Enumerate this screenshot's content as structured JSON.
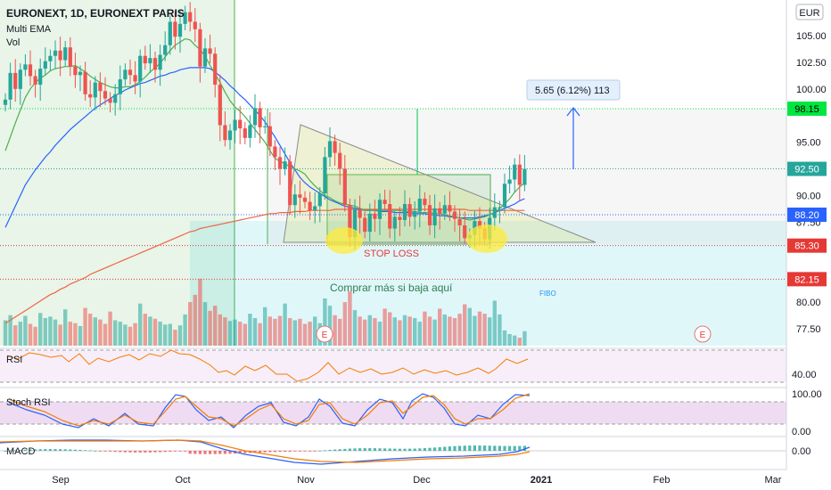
{
  "header": {
    "symbol": "EURONEXT, 1D, EURONEXT PARIS",
    "study_ema": "Multi EMA",
    "study_vol": "Vol",
    "currency": "EUR"
  },
  "annotations": {
    "measure": "5.65 (6.12%) 113",
    "stop_loss": "STOP LOSS",
    "buy_more": "Comprar más si baja aquí",
    "fibo": "FIBO",
    "earnings_marker": "E"
  },
  "panes": {
    "rsi": "RSI",
    "stoch": "Stoch RSI",
    "macd": "MACD"
  },
  "colors": {
    "up": "#26a69a",
    "down": "#ef5350",
    "ema_fast": "#4caf50",
    "ema_mid": "#2962ff",
    "ema_slow": "#f06445",
    "stop_loss": "#e53935",
    "fibo": "#2196f3"
  },
  "chart_data": {
    "type": "candlestick",
    "x_ticks": [
      "Sep",
      "Oct",
      "Nov",
      "Dec",
      "2021",
      "Feb",
      "Mar"
    ],
    "y_ticks": [
      "105.00",
      "102.50",
      "100.00",
      "95.00",
      "90.00",
      "87.50",
      "80.00",
      "77.50"
    ],
    "ylim": [
      75.5,
      107.6
    ],
    "price_levels": [
      {
        "label": "98.15",
        "value": 98.15,
        "color": "#00e640",
        "text_color": "#000000"
      },
      {
        "label": "92.50",
        "value": 92.5,
        "color": "#26a69a",
        "text_color": "#ffffff"
      },
      {
        "label": "88.20",
        "value": 88.2,
        "color": "#2962ff",
        "text_color": "#ffffff"
      },
      {
        "label": "85.30",
        "value": 85.3,
        "color": "#e53935",
        "text_color": "#ffffff"
      },
      {
        "label": "82.15",
        "value": 82.15,
        "color": "#e53935",
        "text_color": "#ffffff"
      }
    ],
    "close": [
      99.0,
      101.5,
      100.0,
      101.8,
      102.3,
      101.2,
      100.4,
      101.9,
      102.6,
      103.1,
      103.6,
      102.7,
      103.9,
      102.1,
      101.3,
      101.6,
      99.5,
      99.2,
      100.6,
      99.8,
      99.1,
      98.7,
      99.5,
      100.9,
      101.8,
      101.3,
      100.7,
      103.1,
      102.4,
      102.9,
      101.8,
      103.2,
      104.1,
      106.3,
      104.9,
      106.1,
      107.2,
      106.3,
      105.6,
      102.1,
      103.8,
      103.3,
      100.4,
      96.6,
      95.2,
      96.1,
      97.1,
      96.3,
      95.4,
      96.6,
      98.2,
      96.4,
      96.5,
      94.6,
      93.6,
      92.5,
      93.2,
      89.1,
      90.1,
      89.8,
      89.4,
      88.6,
      89.0,
      90.2,
      93.6,
      95.1,
      94.0,
      92.5,
      89.1,
      86.1,
      88.7,
      87.9,
      86.6,
      88.3,
      87.8,
      89.6,
      89.2,
      86.9,
      88.0,
      87.7,
      89.2,
      88.0,
      88.5,
      89.7,
      89.1,
      87.2,
      88.8,
      88.3,
      89.1,
      88.5,
      87.8,
      87.2,
      86.0,
      86.3,
      87.6,
      86.9,
      85.9,
      87.9,
      88.9,
      88.9,
      91.1,
      91.5,
      92.9,
      91.0,
      92.5
    ],
    "volume": [
      35,
      42,
      28,
      33,
      41,
      30,
      26,
      45,
      38,
      40,
      36,
      29,
      50,
      33,
      31,
      27,
      52,
      44,
      39,
      36,
      30,
      47,
      35,
      33,
      29,
      26,
      31,
      58,
      44,
      40,
      37,
      33,
      29,
      30,
      22,
      28,
      43,
      60,
      70,
      92,
      60,
      48,
      55,
      43,
      39,
      34,
      36,
      33,
      30,
      44,
      38,
      31,
      53,
      40,
      37,
      41,
      58,
      38,
      35,
      37,
      30,
      33,
      40,
      31,
      65,
      55,
      42,
      37,
      60,
      75,
      49,
      40,
      36,
      42,
      38,
      33,
      51,
      46,
      39,
      35,
      42,
      40,
      38,
      33,
      47,
      40,
      36,
      51,
      43,
      40,
      38,
      44,
      57,
      52,
      41,
      47,
      44,
      39,
      62,
      43,
      21,
      16,
      14,
      11,
      20
    ],
    "ema_fast": [
      94.2,
      95.5,
      96.8,
      98.0,
      99.2,
      100.0,
      100.6,
      101.0,
      101.3,
      101.7,
      101.9,
      102.0,
      102.1,
      102.1,
      102.2,
      101.9,
      101.6,
      101.2,
      100.9,
      100.6,
      100.4,
      100.2,
      100.1,
      100.1,
      100.2,
      100.2,
      100.4,
      100.7,
      101.1,
      101.6,
      102.0,
      102.4,
      103.0,
      103.6,
      104.1,
      104.4,
      104.7,
      104.6,
      104.1,
      103.7,
      103.1,
      102.2,
      101.4,
      100.6,
      99.7,
      98.9,
      98.3,
      97.9,
      97.4,
      96.8,
      96.2,
      95.6,
      95.0,
      94.2,
      93.5,
      93.2,
      93.0,
      92.7,
      92.5,
      92.3,
      92.0,
      91.4,
      90.9,
      90.5,
      90.0,
      89.8,
      89.5,
      89.3,
      89.2,
      89.1,
      89.0,
      88.8,
      88.6,
      88.6,
      88.6,
      88.6,
      88.6,
      88.6,
      88.6,
      88.6,
      88.5,
      88.5,
      88.5,
      88.4,
      88.4,
      88.4,
      88.3,
      88.3,
      88.2,
      88.1,
      88.0,
      87.9,
      87.8,
      87.7,
      87.8,
      87.9,
      88.0,
      88.2,
      88.4,
      88.8,
      89.2,
      89.7,
      90.3,
      90.8,
      91.2
    ],
    "ema_mid": [
      87.0,
      88.0,
      89.0,
      90.0,
      91.0,
      91.7,
      92.4,
      93.0,
      93.6,
      94.1,
      94.7,
      95.2,
      95.7,
      96.2,
      96.6,
      97.0,
      97.4,
      97.8,
      98.2,
      98.5,
      98.8,
      99.1,
      99.4,
      99.6,
      99.9,
      100.1,
      100.3,
      100.5,
      100.6,
      100.8,
      101.0,
      101.2,
      101.3,
      101.5,
      101.6,
      101.8,
      101.9,
      102.0,
      102.0,
      102.0,
      102.0,
      101.9,
      101.6,
      101.2,
      100.8,
      100.3,
      99.9,
      99.4,
      99.0,
      98.5,
      98.0,
      97.5,
      96.9,
      96.2,
      95.5,
      94.7,
      93.9,
      93.1,
      92.4,
      91.7,
      91.2,
      90.8,
      90.5,
      90.2,
      89.9,
      89.6,
      89.4,
      89.2,
      89.0,
      88.9,
      88.8,
      88.7,
      88.6,
      88.6,
      88.6,
      88.5,
      88.5,
      88.5,
      88.4,
      88.4,
      88.4,
      88.4,
      88.3,
      88.3,
      88.3,
      88.2,
      88.2,
      88.1,
      88.1,
      88.0,
      88.0,
      87.9,
      87.9,
      87.9,
      87.9,
      88.0,
      88.1,
      88.2,
      88.4,
      88.6,
      88.8,
      89.0,
      89.2,
      89.5,
      89.7
    ],
    "ema_slow": [
      78.0,
      78.3,
      78.6,
      78.9,
      79.2,
      79.5,
      79.8,
      80.1,
      80.4,
      80.7,
      80.9,
      81.2,
      81.4,
      81.7,
      81.9,
      82.1,
      82.3,
      82.6,
      82.8,
      83.0,
      83.2,
      83.4,
      83.6,
      83.8,
      84.0,
      84.2,
      84.4,
      84.6,
      84.8,
      85.0,
      85.2,
      85.4,
      85.6,
      85.8,
      86.0,
      86.2,
      86.4,
      86.6,
      86.7,
      86.9,
      87.0,
      87.1,
      87.2,
      87.3,
      87.4,
      87.5,
      87.6,
      87.7,
      87.8,
      87.9,
      88.0,
      88.1,
      88.2,
      88.3,
      88.3,
      88.4,
      88.4,
      88.4,
      88.5,
      88.5,
      88.5,
      88.6,
      88.6,
      88.6,
      88.6,
      88.6,
      88.7,
      88.7,
      88.7,
      88.7,
      88.7,
      88.7,
      88.7,
      88.7,
      88.7,
      88.7,
      88.7,
      88.7,
      88.7,
      88.7,
      88.7,
      88.7,
      88.7,
      88.7,
      88.7,
      88.7,
      88.7,
      88.7,
      88.7,
      88.7,
      88.7,
      88.7,
      88.7,
      88.6,
      88.6,
      88.6,
      88.6,
      88.6,
      88.6,
      88.6,
      88.6,
      88.6,
      88.6,
      88.6,
      88.6
    ],
    "rsi_ticks": [
      "40.00"
    ],
    "stoch_ticks": [
      "100.00",
      "0.00"
    ],
    "macd_ticks": [
      "0.00"
    ]
  }
}
